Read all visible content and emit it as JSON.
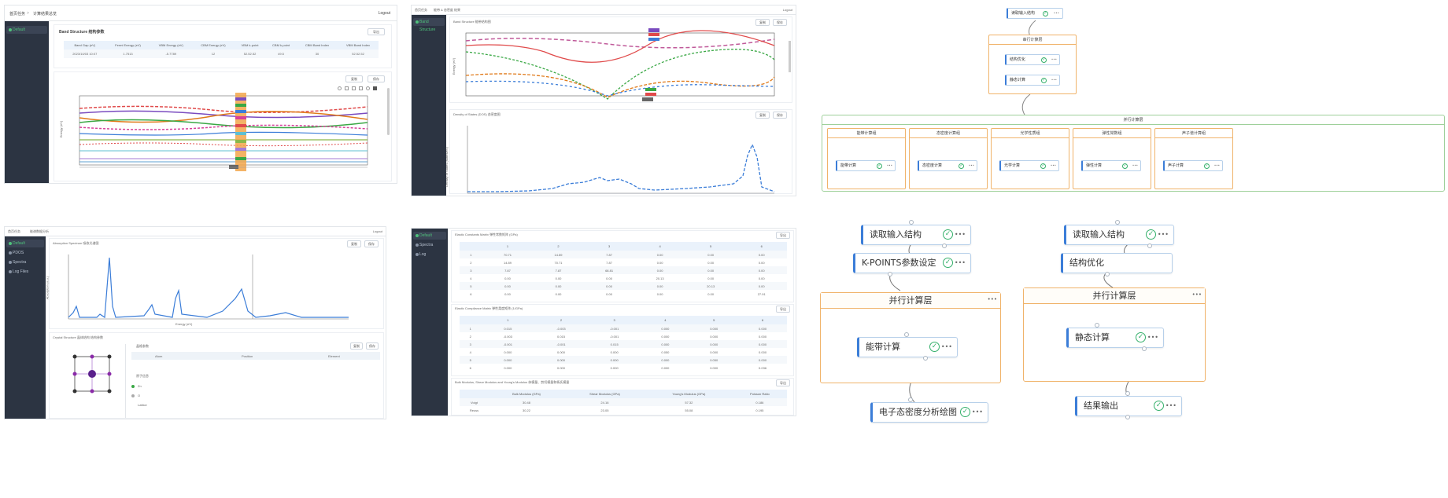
{
  "p1": {
    "breadcrumb_home": "首页任务",
    "breadcrumb_sep": ">",
    "breadcrumb_page": "计算结果总览",
    "logout": "Logout",
    "sidebar_item": "Default",
    "header_title": "Band Structure 结构参数",
    "export": "导出",
    "table_headers": [
      "Band Gap (eV)",
      "Fermi Energy (eV)",
      "VBM Energy (eV)",
      "CBM Energy (eV)",
      "VBM k-point",
      "CBM k-point",
      "CBM Band Index",
      "VBM Band Index"
    ],
    "table_row": [
      "2023/10/03 10:07",
      "1.7513",
      "-5.7789",
      "12",
      "52.52.52",
      "49.5",
      "30",
      "52.52.52"
    ],
    "chart_btn1": "复制",
    "chart_btn2": "保存",
    "ylabel": "Energy (eV)"
  },
  "p2": {
    "breadcrumb_home": "首页任务",
    "breadcrumb_page": "能带 & 态密度 结果",
    "logout": "Logout",
    "sidebar_item": "Band Structure",
    "chart1_title": "Band Structure 能带结构图",
    "chart2_title": "Density of States (DOS) 态密度图",
    "btn_copy": "复制",
    "btn_save": "保存",
    "ylabel1": "Energy (eV)",
    "ylabel2": "Density of States (states/eV)"
  },
  "p3": {
    "breadcrumb_home": "首页任务",
    "breadcrumb_page": "能谱数据分析",
    "logout": "Logout",
    "sidebar_items": [
      "Default",
      "PDOS",
      "Spectra",
      "Log Files"
    ],
    "chart_title": "Absorption Spectrum 吸收光谱图",
    "xlabel": "Energy (eV)",
    "ylabel": "Absorption (a.u.)",
    "btn_copy": "复制",
    "btn_save": "保存",
    "structure_title": "Crystal Structure 晶体结构 结构参数",
    "lattice_title": "晶格参数",
    "col_a": "Atom",
    "col_b": "Position",
    "col_c": "Element",
    "atoms_title": "原子信息",
    "legend1": "Zn",
    "legend2": "O",
    "legend3": "Lattice"
  },
  "p4": {
    "sidebar_items": [
      "Default",
      "Spectra",
      "Log"
    ],
    "t1_title": "Elastic Constants Matrix 弹性常数矩阵 (GPa)",
    "t2_title": "Elastic Compliance Matrix 弹性柔度矩阵 (1/GPa)",
    "t3_title": "Bulk Modulus, Shear Modulus and Young's Modulus 体模量、剪切模量和杨氏模量",
    "export": "导出",
    "cols": [
      "",
      "1",
      "2",
      "3",
      "4",
      "5",
      "6"
    ],
    "t1_rows": [
      [
        "1",
        "70.71",
        "14.89",
        "7.87",
        "0.00",
        "0.00",
        "0.00"
      ],
      [
        "2",
        "14.89",
        "70.71",
        "7.87",
        "0.00",
        "0.00",
        "0.00"
      ],
      [
        "3",
        "7.87",
        "7.87",
        "68.81",
        "0.00",
        "0.00",
        "0.00"
      ],
      [
        "4",
        "0.00",
        "0.00",
        "0.00",
        "20.13",
        "0.00",
        "0.00"
      ],
      [
        "5",
        "0.00",
        "0.00",
        "0.00",
        "0.00",
        "20.13",
        "0.00"
      ],
      [
        "6",
        "0.00",
        "0.00",
        "0.00",
        "0.00",
        "0.00",
        "27.91"
      ]
    ],
    "t2_rows": [
      [
        "1",
        "0.015",
        "-0.003",
        "-0.001",
        "0.000",
        "0.000",
        "0.000"
      ],
      [
        "2",
        "-0.003",
        "0.015",
        "-0.001",
        "0.000",
        "0.000",
        "0.000"
      ],
      [
        "3",
        "-0.001",
        "-0.001",
        "0.015",
        "0.000",
        "0.000",
        "0.000"
      ],
      [
        "4",
        "0.000",
        "0.000",
        "0.000",
        "0.050",
        "0.000",
        "0.000"
      ],
      [
        "5",
        "0.000",
        "0.000",
        "0.000",
        "0.000",
        "0.050",
        "0.000"
      ],
      [
        "6",
        "0.000",
        "0.000",
        "0.000",
        "0.000",
        "0.000",
        "0.036"
      ]
    ],
    "t3_cols": [
      "",
      "Bulk Modulus (GPa)",
      "Shear Modulus (GPa)",
      "Young's Modulus (GPa)",
      "Poisson Ratio"
    ],
    "t3_rows": [
      [
        "Voigt",
        "30.48",
        "24.16",
        "57.32",
        "0.186"
      ],
      [
        "Reuss",
        "30.22",
        "23.05",
        "55.08",
        "0.195"
      ]
    ]
  },
  "wf_small": {
    "top_node": "读取输入结构",
    "group1": "串行计算层",
    "node_a": "结构优化",
    "node_b": "静态计算",
    "big_group": "并行计算层",
    "sub_groups": [
      "能带计算组",
      "态密度计算组",
      "光学性质组",
      "弹性常数组",
      "声子谱计算组"
    ],
    "sub_nodes": [
      "能带计算",
      "态密度计算",
      "光学计算",
      "弹性计算",
      "声子计算"
    ]
  },
  "wf_large": {
    "left_top": "读取输入结构",
    "left_second": "K-POINTS参数设定",
    "left_group": "并行计算层",
    "left_inner": "能带计算",
    "left_bottom": "电子态密度分析绘图",
    "right_top": "读取输入结构",
    "right_second": "结构优化",
    "right_group": "并行计算层",
    "right_inner": "静态计算",
    "right_bottom": "结果输出",
    "check": "✓",
    "more": "•••",
    "group_more": "•••"
  }
}
